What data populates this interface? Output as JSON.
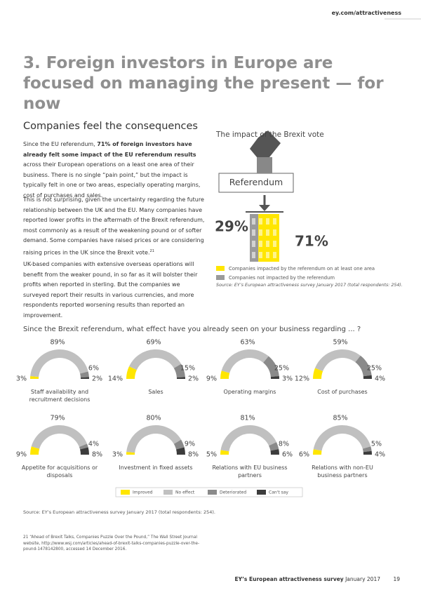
{
  "header": {
    "link": "ey.com/attractiveness"
  },
  "title": "3. Foreign investors in Europe are focused on managing the present — for now",
  "subtitle": "Companies feel the consequences",
  "paragraphs": [
    {
      "before": "Since the EU referendum, ",
      "bold": "71% of foreign investors have already felt some impact of the EU referendum results",
      "after": " across their European operations on a least one area of their business. There is no single “pain point,” but the impact is typically felt in one or two areas, especially operating margins, cost of purchases and sales."
    },
    {
      "before": "This is not surprising, given the uncertainty regarding the future relationship between the UK and the EU. Many companies have reported lower profits in the aftermath of the Brexit referendum, most commonly as a result of the weakening pound or of softer demand. Some companies have raised prices or are considering raising prices in the UK since the Brexit vote.",
      "footnote_ref": "21"
    },
    {
      "before": "UK-based companies with extensive overseas operations will benefit from the weaker pound, in so far as it will bolster their profits when reported in sterling. But the companies we surveyed report their results in various currencies, and more respondents reported worsening results than reported an improvement."
    }
  ],
  "chart_data": [
    {
      "type": "icon-bar",
      "title": "The impact of the Brexit vote",
      "annotation": "Referendum",
      "categories": [
        "Companies impacted by the referendum on at least one area",
        "Companies not impacted by the referendum"
      ],
      "values": [
        71,
        29
      ],
      "value_labels": [
        "71%",
        "29%"
      ],
      "colors": [
        "#ffe600",
        "#9b9b9b"
      ],
      "source": "Source: EY’s European attractiveness survey January 2017 (total respondents: 254)."
    },
    {
      "type": "semi-donut",
      "title": "Since the Brexit referendum, what effect have you already seen on your business regarding ... ?",
      "categories": [
        "Improved",
        "No effect",
        "Deteriorated",
        "Can't say"
      ],
      "colors": [
        "#ffe600",
        "#c0c0c0",
        "#8a8a8a",
        "#3c3c3c"
      ],
      "panels": [
        {
          "title": "Staff availability and recruitment decisions",
          "values": [
            3,
            89,
            6,
            2
          ],
          "value_labels": [
            "3%",
            "89%",
            "6%",
            "2%"
          ]
        },
        {
          "title": "Sales",
          "values": [
            14,
            69,
            15,
            2
          ],
          "value_labels": [
            "14%",
            "69%",
            "15%",
            "2%"
          ]
        },
        {
          "title": "Operating margins",
          "values": [
            9,
            63,
            25,
            3
          ],
          "value_labels": [
            "9%",
            "63%",
            "25%",
            "3%"
          ]
        },
        {
          "title": "Cost of purchases",
          "values": [
            12,
            59,
            25,
            4
          ],
          "value_labels": [
            "12%",
            "59%",
            "25%",
            "4%"
          ]
        },
        {
          "title": "Appetite for acquisitions or disposals",
          "values": [
            9,
            79,
            4,
            8
          ],
          "value_labels": [
            "9%",
            "79%",
            "4%",
            "8%"
          ]
        },
        {
          "title": "Investment in fixed assets",
          "values": [
            3,
            80,
            9,
            8
          ],
          "value_labels": [
            "3%",
            "80%",
            "9%",
            "8%"
          ]
        },
        {
          "title": "Relations with EU business partners",
          "values": [
            5,
            81,
            8,
            6
          ],
          "value_labels": [
            "5%",
            "81%",
            "8%",
            "6%"
          ]
        },
        {
          "title": "Relations with non-EU business partners",
          "values": [
            6,
            85,
            5,
            4
          ],
          "value_labels": [
            "6%",
            "85%",
            "5%",
            "4%"
          ]
        }
      ],
      "source": "Source: EY’s European attractiveness survey January 2017 (total respondents: 254)."
    }
  ],
  "footnote": {
    "number": "21",
    "text": "“Ahead of Brexit Talks, Companies Puzzle Over the Pound,” The Wall Street Journal website, http://www.wsj.com/articles/ahead-of-brexit-talks-companies-puzzle-over-the-pound-1478142800, accessed 14 December 2016."
  },
  "footer": {
    "publication": "EY’s European attractiveness survey",
    "date": "January 2017",
    "page": "19"
  }
}
